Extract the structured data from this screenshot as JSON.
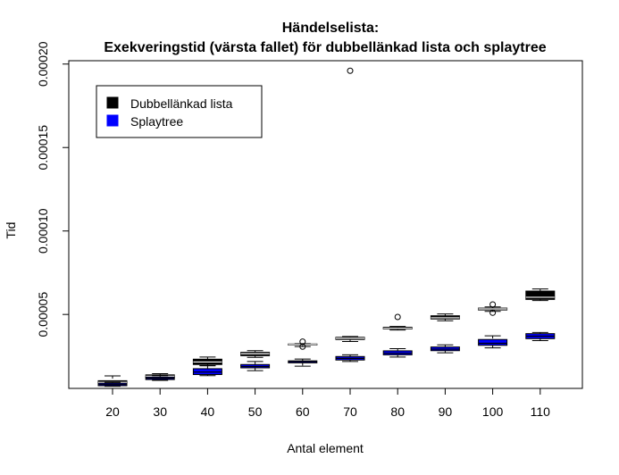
{
  "chart_data": {
    "type": "boxplot",
    "title_line1": "Händelselista:",
    "title_line2": "Exekveringstid (värsta fallet) för dubbellänkad lista och splaytree",
    "xlabel": "Antal element",
    "ylabel": "Tid",
    "categories": [
      "20",
      "30",
      "40",
      "50",
      "60",
      "70",
      "80",
      "90",
      "100",
      "110"
    ],
    "yticks": [
      5e-05,
      0.0001,
      0.00015,
      0.0002
    ],
    "ytick_labels": [
      "0.00005",
      "0.00010",
      "0.00015",
      "0.00020"
    ],
    "ylim": [
      5.7e-06,
      0.000202
    ],
    "legend": [
      {
        "label": "Dubbellänkad lista",
        "color": "#000000"
      },
      {
        "label": "Splaytree",
        "color": "#0000ff"
      }
    ],
    "series": [
      {
        "name": "Dubbellänkad lista",
        "color": "#000000",
        "boxes": [
          {
            "min": 7.5e-06,
            "q1": 8e-06,
            "median": 9.3e-06,
            "q3": 1.03e-05,
            "max": 1.32e-05,
            "outliers": []
          },
          {
            "min": 1.18e-05,
            "q1": 1.23e-05,
            "median": 1.3e-05,
            "q3": 1.38e-05,
            "max": 1.45e-05,
            "outliers": []
          },
          {
            "min": 1.93e-05,
            "q1": 2e-05,
            "median": 2.15e-05,
            "q3": 2.32e-05,
            "max": 2.45e-05,
            "outliers": []
          },
          {
            "min": 2.43e-05,
            "q1": 2.53e-05,
            "median": 2.65e-05,
            "q3": 2.73e-05,
            "max": 2.83e-05,
            "outliers": []
          },
          {
            "min": 3.08e-05,
            "q1": 3.17e-05,
            "median": 3.2e-05,
            "q3": 3.23e-05,
            "max": 3.25e-05,
            "outliers": [
              3.37e-05,
              3.07e-05
            ]
          },
          {
            "min": 3.38e-05,
            "q1": 3.5e-05,
            "median": 3.57e-05,
            "q3": 3.63e-05,
            "max": 3.68e-05,
            "outliers": [
              0.000196
            ]
          },
          {
            "min": 4.07e-05,
            "q1": 4.13e-05,
            "median": 4.17e-05,
            "q3": 4.23e-05,
            "max": 4.28e-05,
            "outliers": [
              4.85e-05
            ]
          },
          {
            "min": 4.62e-05,
            "q1": 4.73e-05,
            "median": 4.8e-05,
            "q3": 4.92e-05,
            "max": 5.03e-05,
            "outliers": []
          },
          {
            "min": 5.18e-05,
            "q1": 5.27e-05,
            "median": 5.33e-05,
            "q3": 5.38e-05,
            "max": 5.45e-05,
            "outliers": [
              5.6e-05,
              5.1e-05
            ]
          },
          {
            "min": 5.83e-05,
            "q1": 5.9e-05,
            "median": 6.03e-05,
            "q3": 6.4e-05,
            "max": 6.53e-05,
            "outliers": []
          }
        ]
      },
      {
        "name": "Splaytree",
        "color": "#0000ff",
        "boxes": [
          {
            "min": 7e-06,
            "q1": 7.3e-06,
            "median": 8e-06,
            "q3": 8.8e-06,
            "max": 9.3e-06,
            "outliers": []
          },
          {
            "min": 1.05e-05,
            "q1": 1.1e-05,
            "median": 1.18e-05,
            "q3": 1.25e-05,
            "max": 1.33e-05,
            "outliers": []
          },
          {
            "min": 1.33e-05,
            "q1": 1.4e-05,
            "median": 1.55e-05,
            "q3": 1.75e-05,
            "max": 1.93e-05,
            "outliers": []
          },
          {
            "min": 1.63e-05,
            "q1": 1.8e-05,
            "median": 1.88e-05,
            "q3": 2e-05,
            "max": 2.18e-05,
            "outliers": []
          },
          {
            "min": 1.9e-05,
            "q1": 2.1e-05,
            "median": 2.17e-05,
            "q3": 2.22e-05,
            "max": 2.33e-05,
            "outliers": []
          },
          {
            "min": 2.18e-05,
            "q1": 2.27e-05,
            "median": 2.37e-05,
            "q3": 2.48e-05,
            "max": 2.58e-05,
            "outliers": []
          },
          {
            "min": 2.45e-05,
            "q1": 2.58e-05,
            "median": 2.68e-05,
            "q3": 2.82e-05,
            "max": 2.95e-05,
            "outliers": []
          },
          {
            "min": 2.7e-05,
            "q1": 2.83e-05,
            "median": 2.92e-05,
            "q3": 3.05e-05,
            "max": 3.18e-05,
            "outliers": []
          },
          {
            "min": 3e-05,
            "q1": 3.15e-05,
            "median": 3.27e-05,
            "q3": 3.5e-05,
            "max": 3.72e-05,
            "outliers": []
          },
          {
            "min": 3.43e-05,
            "q1": 3.55e-05,
            "median": 3.7e-05,
            "q3": 3.85e-05,
            "max": 3.92e-05,
            "outliers": []
          }
        ]
      }
    ]
  }
}
